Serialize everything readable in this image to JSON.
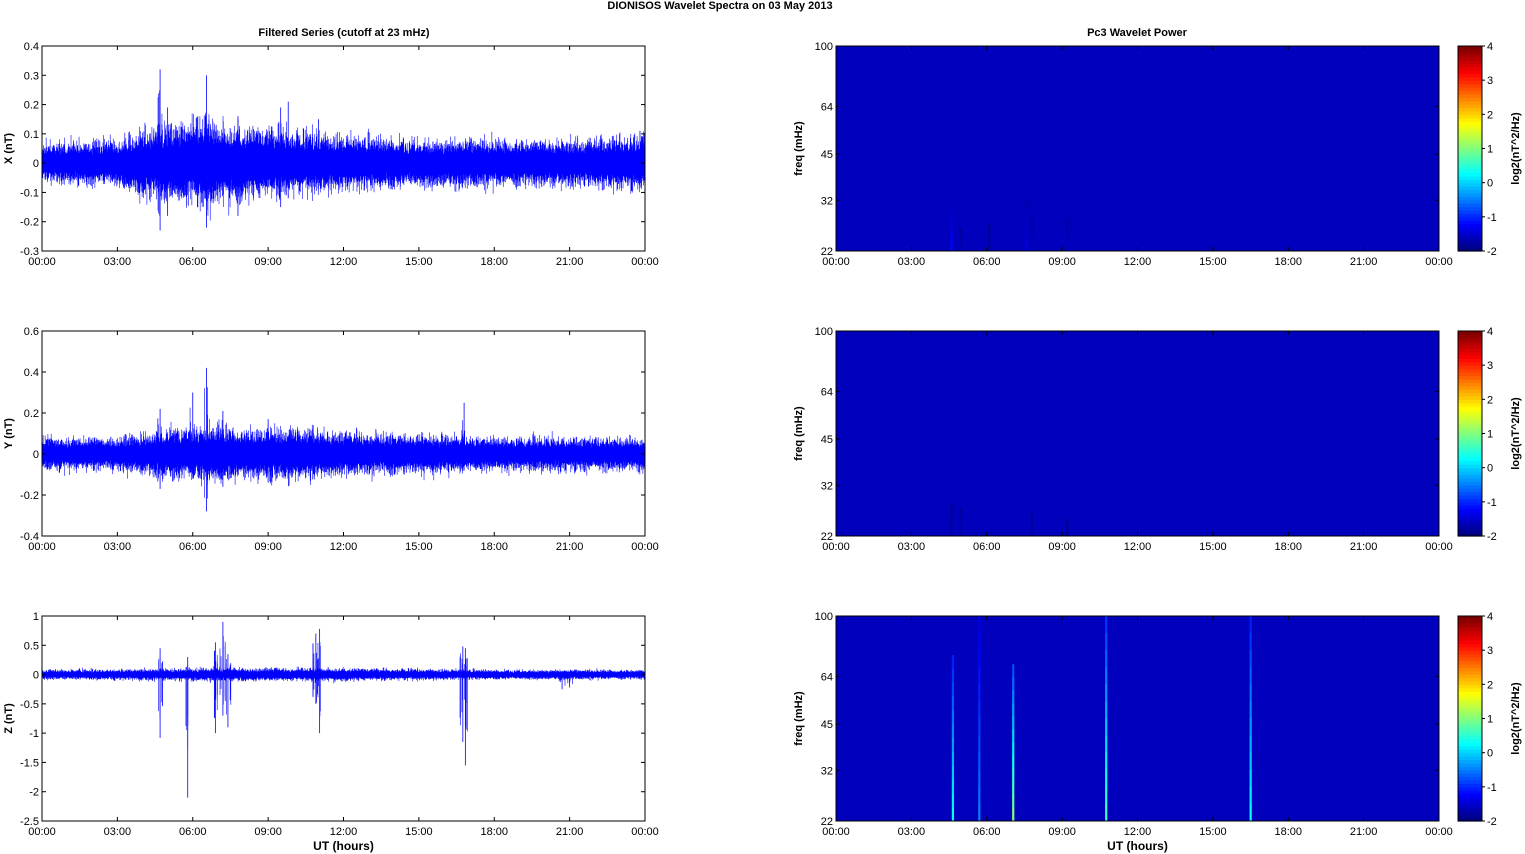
{
  "figure": {
    "title": "DIONISOS Wavelet Spectra on 03 May       2013",
    "left_title": "Filtered Series (cutoff at 23 mHz)",
    "right_title": "Pc3 Wavelet Power",
    "xlabel": "UT (hours)"
  },
  "colors": {
    "trace": "#0000ff",
    "spectrogram_bg": "#00008f",
    "axis": "#000000"
  },
  "chart_data": [
    {
      "type": "line",
      "id": "x-series",
      "ylabel": "X (nT)",
      "xlim": [
        0,
        24
      ],
      "ylim": [
        -0.3,
        0.4
      ],
      "xticks": [
        "00:00",
        "03:00",
        "06:00",
        "09:00",
        "12:00",
        "15:00",
        "18:00",
        "21:00",
        "00:00"
      ],
      "yticks": [
        "-0.3",
        "-0.2",
        "-0.1",
        "0",
        "0.1",
        "0.2",
        "0.3",
        "0.4"
      ],
      "noise_profile": {
        "hours": [
          0,
          3,
          4.5,
          5,
          6,
          6.5,
          7,
          8,
          9,
          10,
          12,
          15,
          18,
          21,
          24
        ],
        "amplitude": [
          0.05,
          0.06,
          0.09,
          0.1,
          0.1,
          0.12,
          0.1,
          0.09,
          0.09,
          0.08,
          0.07,
          0.06,
          0.06,
          0.06,
          0.07
        ]
      },
      "spikes": [
        {
          "hour": 4.7,
          "max": 0.32,
          "min": -0.23
        },
        {
          "hour": 5.0,
          "max": 0.19,
          "min": -0.18
        },
        {
          "hour": 6.2,
          "max": 0.16,
          "min": -0.15
        },
        {
          "hour": 6.55,
          "max": 0.3,
          "min": -0.22
        },
        {
          "hour": 7.8,
          "max": 0.16,
          "min": -0.18
        },
        {
          "hour": 9.5,
          "max": 0.19,
          "min": -0.15
        },
        {
          "hour": 9.8,
          "max": 0.21,
          "min": -0.12
        },
        {
          "hour": 11.0,
          "max": 0.15,
          "min": -0.09
        },
        {
          "hour": 23.8,
          "max": 0.11,
          "min": -0.08
        }
      ]
    },
    {
      "type": "line",
      "id": "y-series",
      "ylabel": "Y (nT)",
      "xlim": [
        0,
        24
      ],
      "ylim": [
        -0.4,
        0.6
      ],
      "xticks": [
        "00:00",
        "03:00",
        "06:00",
        "09:00",
        "12:00",
        "15:00",
        "18:00",
        "21:00",
        "00:00"
      ],
      "yticks": [
        "-0.4",
        "-0.2",
        "0",
        "0.2",
        "0.4",
        "0.6"
      ],
      "noise_profile": {
        "hours": [
          0,
          3,
          4.5,
          5,
          6,
          7,
          8,
          9,
          10,
          12,
          15,
          18,
          21,
          24
        ],
        "amplitude": [
          0.06,
          0.06,
          0.08,
          0.09,
          0.09,
          0.1,
          0.09,
          0.09,
          0.09,
          0.08,
          0.07,
          0.06,
          0.06,
          0.06
        ]
      },
      "spikes": [
        {
          "hour": 4.7,
          "max": 0.22,
          "min": -0.17
        },
        {
          "hour": 6.0,
          "max": 0.3,
          "min": -0.12
        },
        {
          "hour": 6.55,
          "max": 0.42,
          "min": -0.28
        },
        {
          "hour": 7.2,
          "max": 0.21,
          "min": -0.16
        },
        {
          "hour": 9.0,
          "max": 0.17,
          "min": -0.14
        },
        {
          "hour": 16.8,
          "max": 0.25,
          "min": -0.08
        }
      ]
    },
    {
      "type": "line",
      "id": "z-series",
      "ylabel": "Z (nT)",
      "xlabel": "UT (hours)",
      "xlim": [
        0,
        24
      ],
      "ylim": [
        -2.5,
        1
      ],
      "xticks": [
        "00:00",
        "03:00",
        "06:00",
        "09:00",
        "12:00",
        "15:00",
        "18:00",
        "21:00",
        "00:00"
      ],
      "yticks": [
        "-2.5",
        "-2",
        "-1.5",
        "-1",
        "-0.5",
        "0",
        "0.5",
        "1"
      ],
      "noise_profile": {
        "hours": [
          0,
          4,
          6,
          9,
          12,
          15,
          18,
          21,
          24
        ],
        "amplitude": [
          0.06,
          0.07,
          0.08,
          0.08,
          0.08,
          0.07,
          0.06,
          0.06,
          0.06
        ]
      },
      "spikes": [
        {
          "hour": 4.7,
          "max": 0.45,
          "min": -1.08
        },
        {
          "hour": 5.8,
          "max": 0.3,
          "min": -2.1
        },
        {
          "hour": 6.9,
          "max": 0.55,
          "min": -1.0
        },
        {
          "hour": 7.2,
          "max": 0.9,
          "min": -0.7
        },
        {
          "hour": 7.4,
          "max": 0.35,
          "min": -0.9
        },
        {
          "hour": 10.9,
          "max": 0.7,
          "min": -0.5
        },
        {
          "hour": 11.05,
          "max": 0.78,
          "min": -1.0
        },
        {
          "hour": 16.75,
          "max": 0.48,
          "min": -1.15
        },
        {
          "hour": 16.85,
          "max": 0.45,
          "min": -1.55
        },
        {
          "hour": 20.7,
          "max": 0.05,
          "min": -0.25
        },
        {
          "hour": 21.0,
          "max": 0.05,
          "min": -0.22
        }
      ]
    },
    {
      "type": "heatmap",
      "id": "x-spectrogram",
      "ylabel": "freq (mHz)",
      "xlim": [
        0,
        24
      ],
      "ylim": [
        22,
        100
      ],
      "yscale": "log",
      "xticks": [
        "00:00",
        "03:00",
        "06:00",
        "09:00",
        "12:00",
        "15:00",
        "18:00",
        "21:00",
        "00:00"
      ],
      "yticks": [
        "22",
        "32",
        "45",
        "64",
        "100"
      ],
      "colorbar": {
        "label": "log2(nT^2/Hz)",
        "range": [
          -2,
          4
        ],
        "ticks": [
          "-2",
          "-1",
          "0",
          "1",
          "2",
          "3",
          "4"
        ]
      },
      "background_level": -2,
      "bursts": [
        {
          "hour": 4.6,
          "freq_top": 32,
          "level": -1.2
        },
        {
          "hour": 4.95,
          "freq_top": 26,
          "level": -1.7
        },
        {
          "hour": 6.1,
          "freq_top": 27,
          "level": -1.8
        },
        {
          "hour": 7.6,
          "freq_top": 32,
          "level": -1.4
        },
        {
          "hour": 7.8,
          "freq_top": 28,
          "level": -1.6
        },
        {
          "hour": 9.2,
          "freq_top": 28,
          "level": -1.6
        }
      ]
    },
    {
      "type": "heatmap",
      "id": "y-spectrogram",
      "ylabel": "freq (mHz)",
      "xlim": [
        0,
        24
      ],
      "ylim": [
        22,
        100
      ],
      "yscale": "log",
      "xticks": [
        "00:00",
        "03:00",
        "06:00",
        "09:00",
        "12:00",
        "15:00",
        "18:00",
        "21:00",
        "00:00"
      ],
      "yticks": [
        "22",
        "32",
        "45",
        "64",
        "100"
      ],
      "colorbar": {
        "label": "log2(nT^2/Hz)",
        "range": [
          -2,
          4
        ],
        "ticks": [
          "-2",
          "-1",
          "0",
          "1",
          "2",
          "3",
          "4"
        ]
      },
      "background_level": -2,
      "bursts": [
        {
          "hour": 4.6,
          "freq_top": 28,
          "level": -1.8
        },
        {
          "hour": 4.95,
          "freq_top": 27,
          "level": -1.7
        },
        {
          "hour": 7.8,
          "freq_top": 26,
          "level": -1.8
        },
        {
          "hour": 9.2,
          "freq_top": 25,
          "level": -1.85
        }
      ]
    },
    {
      "type": "heatmap",
      "id": "z-spectrogram",
      "ylabel": "freq (mHz)",
      "xlabel": "UT (hours)",
      "xlim": [
        0,
        24
      ],
      "ylim": [
        22,
        100
      ],
      "yscale": "log",
      "xticks": [
        "00:00",
        "03:00",
        "06:00",
        "09:00",
        "12:00",
        "15:00",
        "18:00",
        "21:00",
        "00:00"
      ],
      "yticks": [
        "22",
        "32",
        "45",
        "64",
        "100"
      ],
      "colorbar": {
        "label": "log2(nT^2/Hz)",
        "range": [
          -2,
          4
        ],
        "ticks": [
          "-2",
          "-1",
          "0",
          "1",
          "2",
          "3",
          "4"
        ]
      },
      "background_level": -2,
      "bursts": [
        {
          "hour": 4.65,
          "freq_top": 75,
          "level": 0.3
        },
        {
          "hour": 5.7,
          "freq_top": 100,
          "level": -0.5
        },
        {
          "hour": 7.05,
          "freq_top": 70,
          "level": 1.0
        },
        {
          "hour": 10.75,
          "freq_top": 100,
          "level": 0.6
        },
        {
          "hour": 16.5,
          "freq_top": 100,
          "level": 0.3
        }
      ]
    }
  ]
}
